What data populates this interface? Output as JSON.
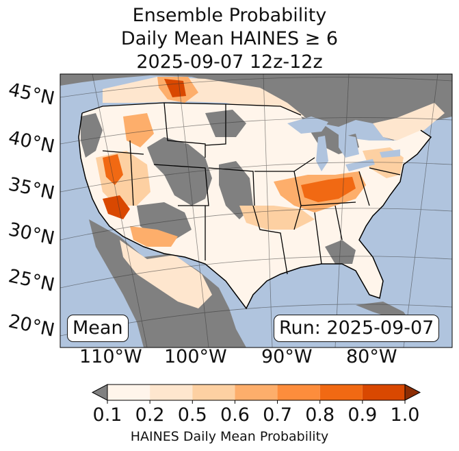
{
  "title": {
    "line1": "Ensemble Probability",
    "line2": "Daily Mean HAINES ≥ 6",
    "line3": "2025-09-07 12z-12z"
  },
  "latitude_labels": [
    "45°N",
    "40°N",
    "35°N",
    "30°N",
    "25°N",
    "20°N"
  ],
  "longitude_labels": [
    "110°W",
    "100°W",
    "90°W",
    "80°W"
  ],
  "stat_label": "Mean",
  "run_label": "Run: 2025-09-07",
  "colorbar": {
    "ticks": [
      "0.1",
      "0.2",
      "0.5",
      "0.6",
      "0.7",
      "0.8",
      "0.9",
      "1.0"
    ],
    "colors": [
      "#808080",
      "#fff5eb",
      "#fee6ce",
      "#fdd0a2",
      "#fdae6b",
      "#fd8d3c",
      "#f16913",
      "#d94801",
      "#8c2d04"
    ],
    "label": "HAINES Daily Mean Probability"
  },
  "map_colors": {
    "ocean": "#b0c4de",
    "outside_land": "#808080",
    "below_threshold": "#808080",
    "lakes": "#b0c4de"
  }
}
